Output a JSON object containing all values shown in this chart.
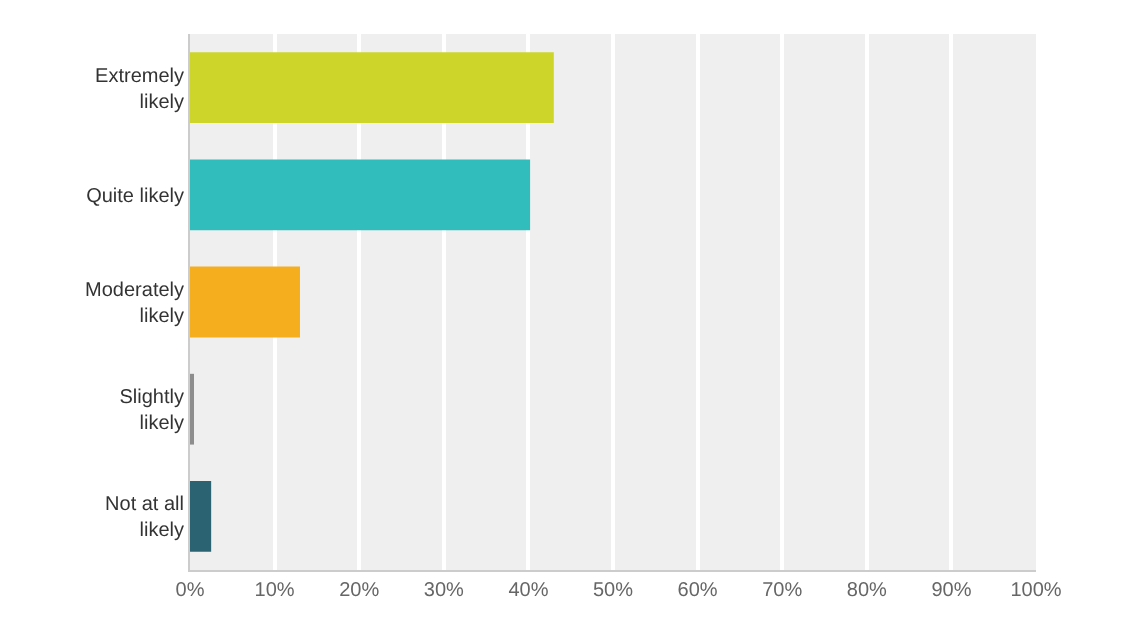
{
  "chart_data": {
    "type": "bar",
    "orientation": "horizontal",
    "categories": [
      "Extremely likely",
      "Quite likely",
      "Moderately likely",
      "Slightly likely",
      "Not at all likely"
    ],
    "values": [
      43.0,
      40.2,
      13.0,
      0.4,
      2.5
    ],
    "colors": [
      "#cdd42a",
      "#32bdbd",
      "#f5ae1e",
      "#8d8d8d",
      "#2b6372"
    ],
    "xlim": [
      0,
      100
    ],
    "xticks": [
      {
        "value": 0,
        "label": "0%"
      },
      {
        "value": 10,
        "label": "10%"
      },
      {
        "value": 20,
        "label": "20%"
      },
      {
        "value": 30,
        "label": "30%"
      },
      {
        "value": 40,
        "label": "40%"
      },
      {
        "value": 50,
        "label": "50%"
      },
      {
        "value": 60,
        "label": "60%"
      },
      {
        "value": 70,
        "label": "70%"
      },
      {
        "value": 80,
        "label": "80%"
      },
      {
        "value": 90,
        "label": "90%"
      },
      {
        "value": 100,
        "label": "100%"
      }
    ],
    "grid": "x"
  }
}
